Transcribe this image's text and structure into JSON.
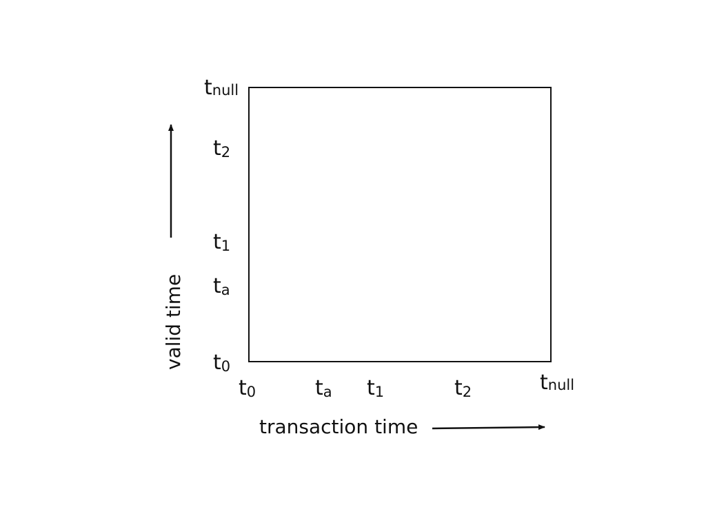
{
  "diagram": {
    "x_axis_title": "transaction time",
    "y_axis_title": "valid time",
    "x_ticks": [
      {
        "base": "t",
        "sub": "0"
      },
      {
        "base": "t",
        "sub": "a"
      },
      {
        "base": "t",
        "sub": "1"
      },
      {
        "base": "t",
        "sub": "2"
      },
      {
        "base": "t",
        "sub": "null"
      }
    ],
    "y_ticks": [
      {
        "base": "t",
        "sub": "null"
      },
      {
        "base": "t",
        "sub": "2"
      },
      {
        "base": "t",
        "sub": "1"
      },
      {
        "base": "t",
        "sub": "a"
      },
      {
        "base": "t",
        "sub": "0"
      }
    ]
  }
}
